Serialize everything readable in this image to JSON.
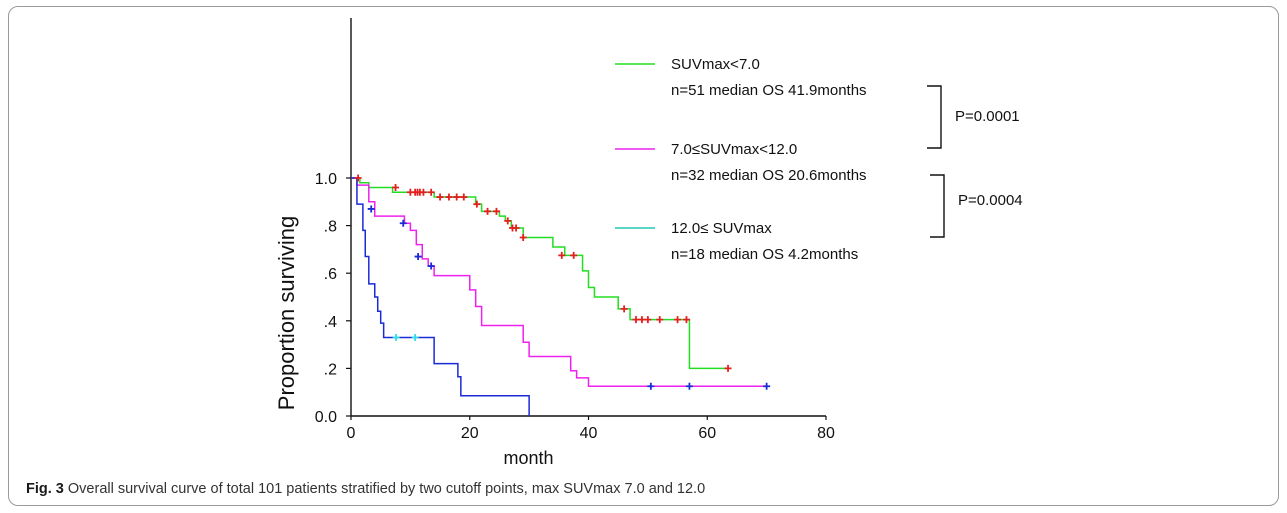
{
  "caption": {
    "label": "Fig. 3",
    "text": " Overall survival curve of total 101 patients stratified by two cutoff points, max SUVmax 7.0 and 12.0"
  },
  "chart_data": {
    "type": "line",
    "step": true,
    "xlabel": "month",
    "ylabel": "Proportion surviving",
    "xlim": [
      0,
      80
    ],
    "ylim": [
      0,
      1.2
    ],
    "xticks": [
      {
        "value": 0,
        "label": "0"
      },
      {
        "value": 20,
        "label": "20"
      },
      {
        "value": 40,
        "label": "40"
      },
      {
        "value": 60,
        "label": "60"
      },
      {
        "value": 80,
        "label": "80"
      }
    ],
    "yticks": [
      {
        "value": 0,
        "label": "0.0"
      },
      {
        "value": 0.2,
        "label": ".2"
      },
      {
        "value": 0.4,
        "label": ".4"
      },
      {
        "value": 0.6,
        "label": ".6"
      },
      {
        "value": 0.8,
        "label": ".8"
      },
      {
        "value": 1.0,
        "label": "1.0"
      }
    ],
    "grid": false,
    "series": [
      {
        "name": "SUVmax<7.0",
        "stats": "n=51  median OS  41.9months",
        "color": "#22dd22",
        "censor_color": "#e32020",
        "steps": [
          [
            0,
            1.0
          ],
          [
            1.5,
            0.98
          ],
          [
            3,
            0.96
          ],
          [
            7,
            0.94
          ],
          [
            14,
            0.92
          ],
          [
            21,
            0.89
          ],
          [
            22,
            0.86
          ],
          [
            25,
            0.84
          ],
          [
            26,
            0.82
          ],
          [
            27,
            0.79
          ],
          [
            29,
            0.75
          ],
          [
            34,
            0.71
          ],
          [
            36,
            0.675
          ],
          [
            39,
            0.61
          ],
          [
            40,
            0.54
          ],
          [
            41,
            0.5
          ],
          [
            45,
            0.45
          ],
          [
            47,
            0.405
          ],
          [
            57,
            0.2
          ],
          [
            64,
            0.2
          ]
        ],
        "censored": [
          [
            1.2,
            1.0
          ],
          [
            7.5,
            0.96
          ],
          [
            10,
            0.94
          ],
          [
            10.8,
            0.94
          ],
          [
            11.2,
            0.94
          ],
          [
            11.6,
            0.94
          ],
          [
            12.2,
            0.94
          ],
          [
            13.5,
            0.94
          ],
          [
            15,
            0.92
          ],
          [
            16.5,
            0.92
          ],
          [
            17.8,
            0.92
          ],
          [
            19,
            0.92
          ],
          [
            21.2,
            0.89
          ],
          [
            23,
            0.86
          ],
          [
            24.5,
            0.86
          ],
          [
            26.4,
            0.82
          ],
          [
            27.2,
            0.79
          ],
          [
            27.8,
            0.79
          ],
          [
            29,
            0.75
          ],
          [
            35.5,
            0.675
          ],
          [
            37.5,
            0.675
          ],
          [
            46,
            0.45
          ],
          [
            48,
            0.405
          ],
          [
            49,
            0.405
          ],
          [
            50,
            0.405
          ],
          [
            52,
            0.405
          ],
          [
            55,
            0.405
          ],
          [
            56.5,
            0.405
          ],
          [
            63.5,
            0.2
          ]
        ]
      },
      {
        "name": "7.0≤SUVmax<12.0",
        "stats": "n=32  median OS  20.6months",
        "color": "#ee22ee",
        "censor_color": "#1a2bd6",
        "steps": [
          [
            0,
            1.0
          ],
          [
            1,
            0.97
          ],
          [
            3,
            0.9
          ],
          [
            4,
            0.84
          ],
          [
            9,
            0.81
          ],
          [
            10,
            0.78
          ],
          [
            11,
            0.72
          ],
          [
            12,
            0.66
          ],
          [
            13,
            0.63
          ],
          [
            14,
            0.59
          ],
          [
            20,
            0.53
          ],
          [
            21,
            0.46
          ],
          [
            22,
            0.38
          ],
          [
            29,
            0.31
          ],
          [
            30,
            0.25
          ],
          [
            37,
            0.19
          ],
          [
            38,
            0.16
          ],
          [
            40,
            0.125
          ],
          [
            70,
            0.125
          ]
        ],
        "censored": [
          [
            50.5,
            0.125
          ],
          [
            57,
            0.125
          ],
          [
            70,
            0.125
          ]
        ]
      },
      {
        "name": "12.0≤ SUVmax",
        "stats": "n=18 median OS 4.2months",
        "color": "#1a2bd6",
        "legend_color": "#25c8b4",
        "censor_color": "#33ddee",
        "steps": [
          [
            0,
            1.0
          ],
          [
            1,
            0.89
          ],
          [
            2,
            0.78
          ],
          [
            2.4,
            0.67
          ],
          [
            3,
            0.555
          ],
          [
            4,
            0.5
          ],
          [
            4.5,
            0.44
          ],
          [
            5,
            0.39
          ],
          [
            5.5,
            0.33
          ],
          [
            14,
            0.22
          ],
          [
            18,
            0.165
          ],
          [
            18.5,
            0.085
          ],
          [
            30,
            0.085
          ],
          [
            30,
            0.0
          ]
        ],
        "censored": [
          [
            7.6,
            0.33
          ],
          [
            10.8,
            0.33
          ]
        ],
        "extra_censored_color": "#1a2bd6",
        "extra_censored": [
          [
            3.4,
            0.87
          ],
          [
            8.8,
            0.81
          ],
          [
            11.3,
            0.67
          ],
          [
            13.5,
            0.63
          ]
        ]
      }
    ],
    "comparisons": [
      {
        "label": "P=0.0001"
      },
      {
        "label": "P=0.0004"
      }
    ]
  }
}
